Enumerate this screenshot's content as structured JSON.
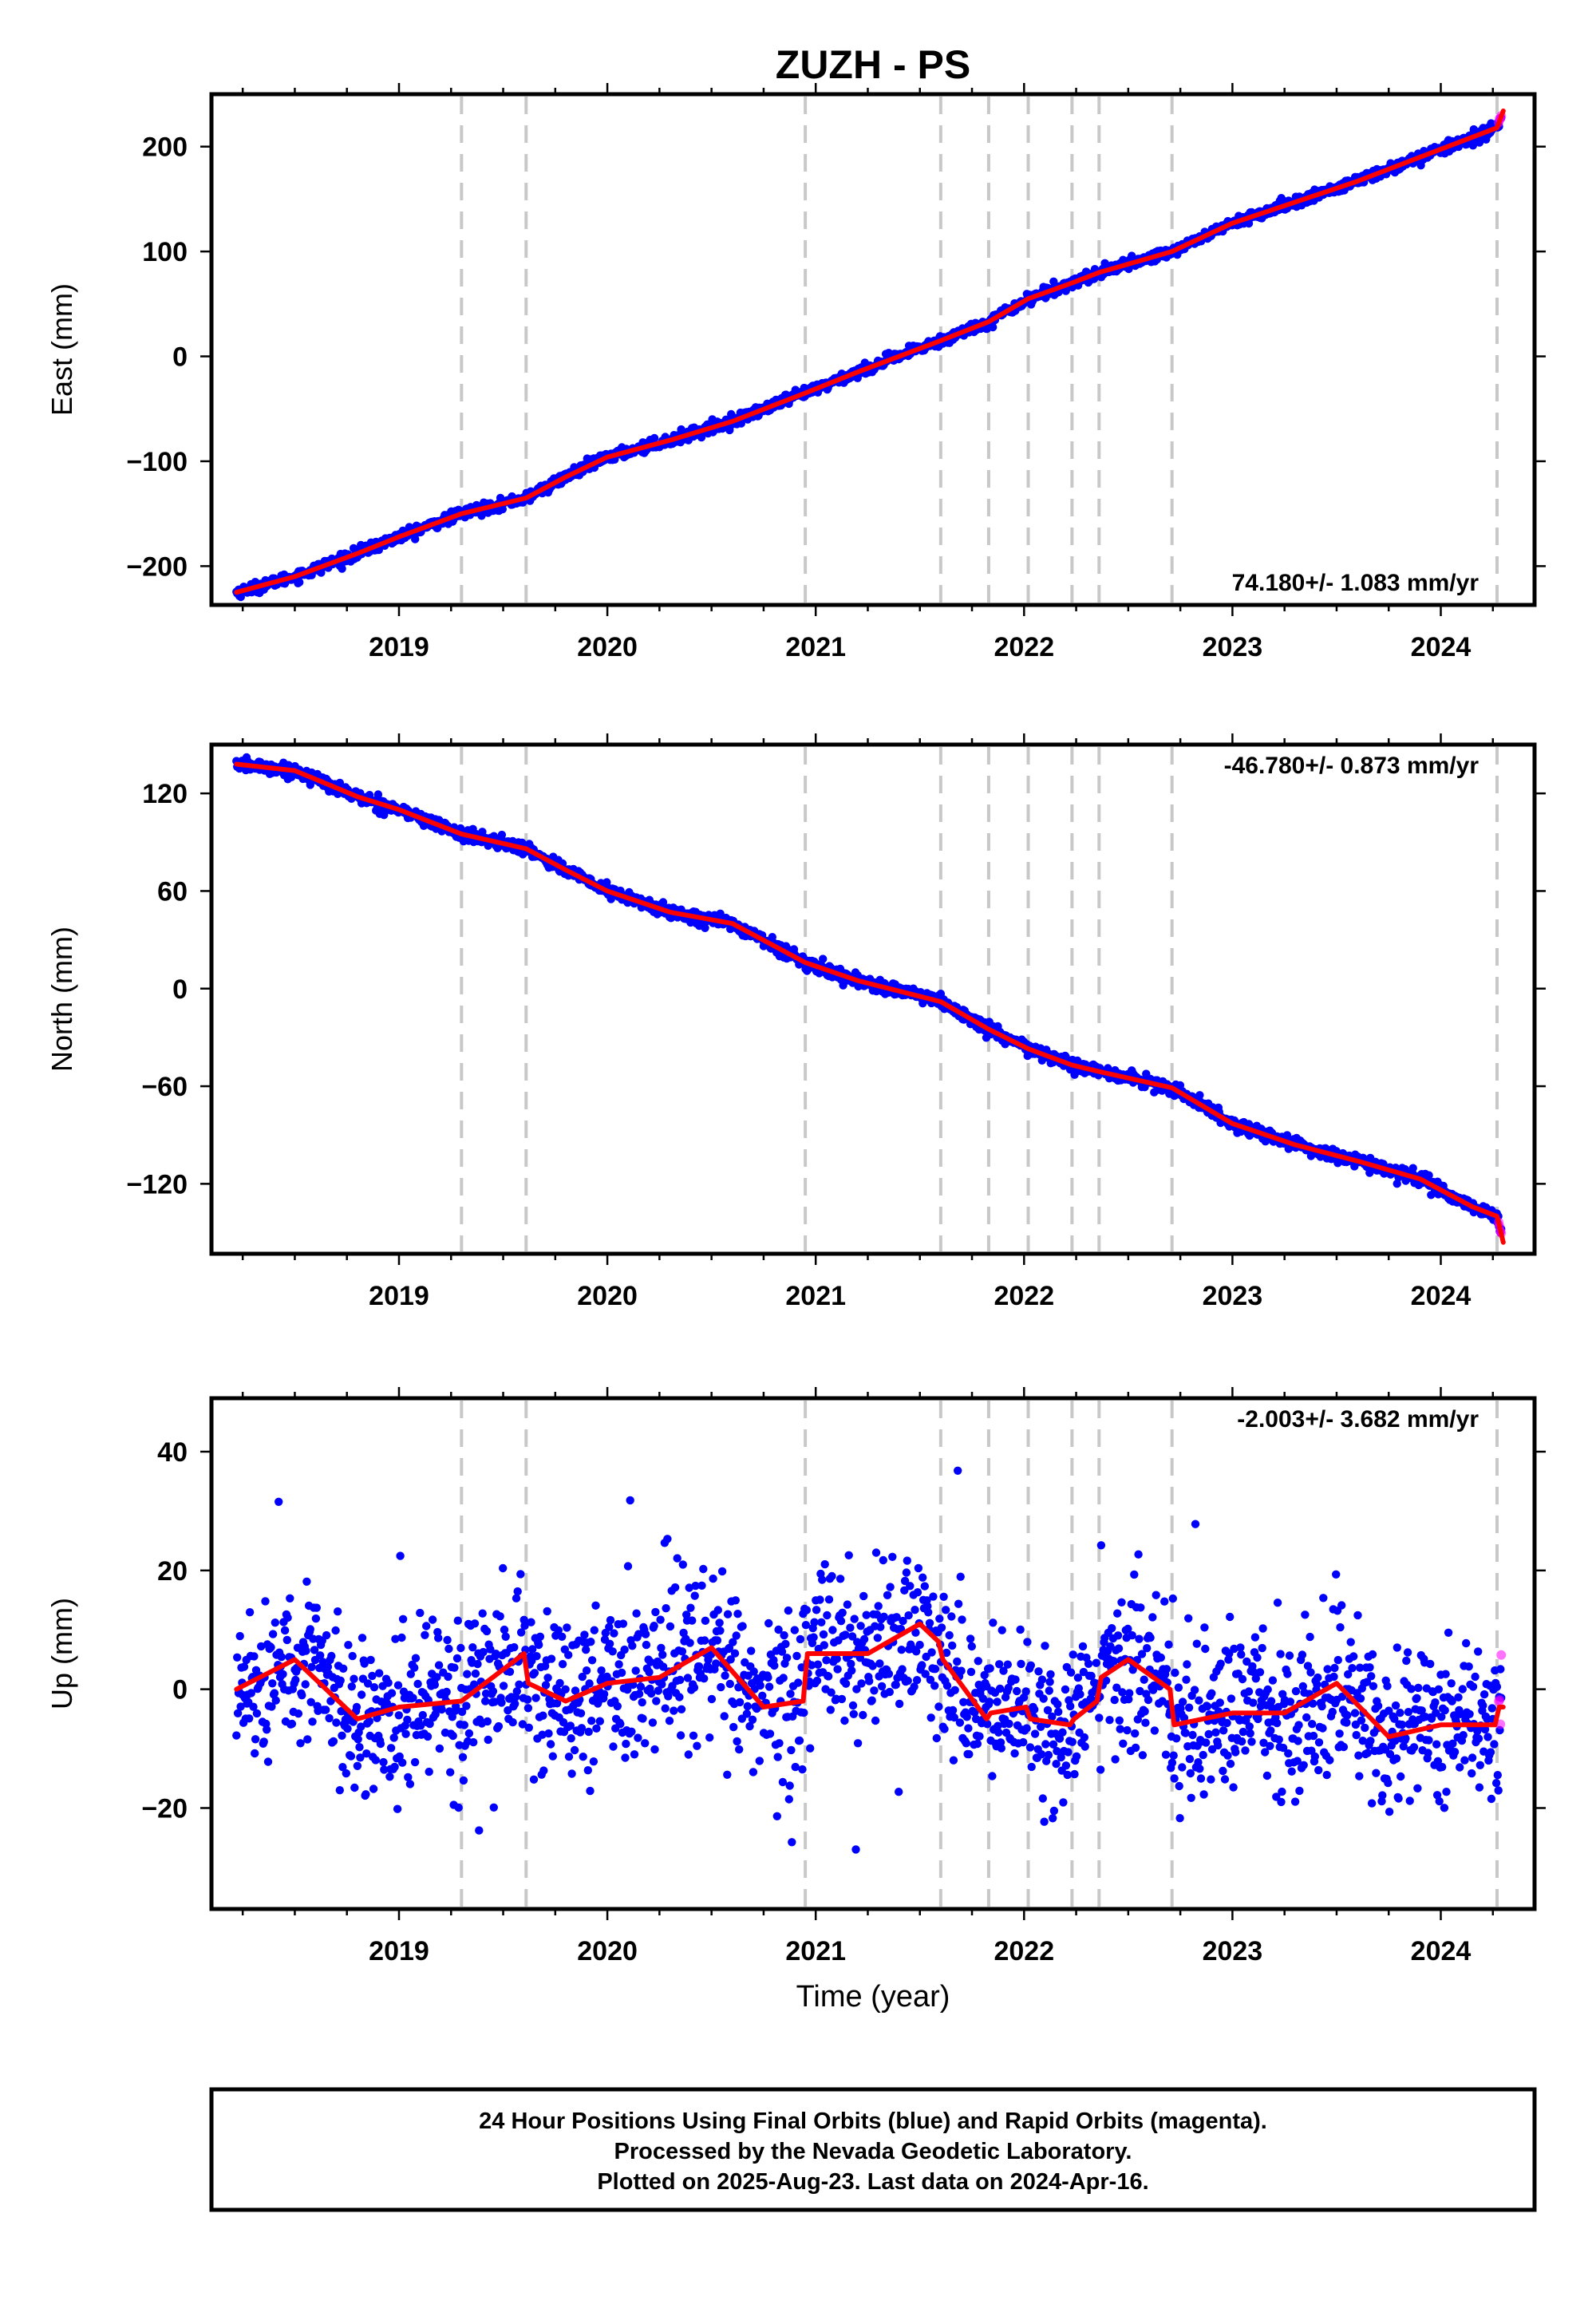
{
  "title": "ZUZH - PS",
  "colors": {
    "final_orbits": "#0000ff",
    "rapid_orbits": "#ff00ff",
    "model_fit": "#ff0000",
    "breaks": "#c8c8c8"
  },
  "footer": {
    "line1": "24 Hour Positions Using Final Orbits (blue) and Rapid Orbits (magenta).",
    "line2": "Processed by the Nevada Geodetic Laboratory.",
    "line3": "Plotted on 2025-Aug-23. Last data on 2024-Apr-16."
  },
  "chart_data": [
    {
      "type": "scatter",
      "ylabel": "East (mm)",
      "xlabel": "",
      "rate_label": "74.180+/- 1.083 mm/yr",
      "xlim": [
        2018.1,
        2024.45
      ],
      "ylim": [
        -237,
        250
      ],
      "xticks": [
        2019,
        2020,
        2021,
        2022,
        2023,
        2024
      ],
      "xtick_labels": [
        "2019",
        "2020",
        "2021",
        "2022",
        "2023",
        "2024"
      ],
      "yticks": [
        -200,
        -100,
        0,
        100,
        200
      ],
      "ytick_labels": [
        "−200",
        "−100",
        "0",
        "100",
        "200"
      ],
      "break_lines": [
        2019.3,
        2019.61,
        2020.95,
        2021.6,
        2021.83,
        2022.02,
        2022.23,
        2022.36,
        2022.71,
        2024.27
      ],
      "fit": {
        "x": [
          2018.22,
          2018.5,
          2018.8,
          2019.0,
          2019.3,
          2019.61,
          2019.8,
          2020.0,
          2020.3,
          2020.6,
          2020.95,
          2021.2,
          2021.6,
          2021.83,
          2022.02,
          2022.23,
          2022.36,
          2022.71,
          2023.0,
          2023.3,
          2023.6,
          2023.9,
          2024.27,
          2024.3
        ],
        "y": [
          -225,
          -210,
          -188,
          -172,
          -150,
          -135,
          -115,
          -96,
          -80,
          -62,
          -35,
          -15,
          15,
          33,
          55,
          70,
          80,
          100,
          127,
          147,
          167,
          190,
          218,
          234
        ]
      },
      "scatter": {
        "n": 1750,
        "x_start": 2018.22,
        "x_end": 2024.29,
        "noise_sd": 2.6,
        "rapid_tail_start": 2024.22
      }
    },
    {
      "type": "scatter",
      "ylabel": "North (mm)",
      "xlabel": "",
      "rate_label": "-46.780+/- 0.873 mm/yr",
      "xlim": [
        2018.1,
        2024.45
      ],
      "ylim": [
        -163,
        150
      ],
      "xticks": [
        2019,
        2020,
        2021,
        2022,
        2023,
        2024
      ],
      "xtick_labels": [
        "2019",
        "2020",
        "2021",
        "2022",
        "2023",
        "2024"
      ],
      "yticks": [
        -120,
        -60,
        0,
        60,
        120
      ],
      "ytick_labels": [
        "−120",
        "−60",
        "0",
        "60",
        "120"
      ],
      "break_lines": [
        2019.3,
        2019.61,
        2020.95,
        2021.6,
        2021.83,
        2022.02,
        2022.23,
        2022.36,
        2022.71,
        2024.27
      ],
      "fit": {
        "x": [
          2018.22,
          2018.5,
          2018.8,
          2019.0,
          2019.3,
          2019.61,
          2019.8,
          2020.0,
          2020.3,
          2020.6,
          2020.95,
          2021.2,
          2021.6,
          2021.83,
          2022.02,
          2022.23,
          2022.36,
          2022.71,
          2023.0,
          2023.3,
          2023.6,
          2023.9,
          2024.15,
          2024.27,
          2024.3
        ],
        "y": [
          138,
          134,
          118,
          110,
          95,
          86,
          73,
          60,
          47,
          40,
          16,
          5,
          -8,
          -25,
          -37,
          -47,
          -51,
          -61,
          -83,
          -96,
          -106,
          -117,
          -134,
          -140,
          -156
        ]
      },
      "scatter": {
        "n": 1750,
        "x_start": 2018.22,
        "x_end": 2024.29,
        "noise_sd": 1.9,
        "rapid_tail_start": 2024.22
      }
    },
    {
      "type": "scatter",
      "ylabel": "Up (mm)",
      "xlabel": "Time (year)",
      "rate_label": "-2.003+/- 3.682 mm/yr",
      "xlim": [
        2018.1,
        2024.45
      ],
      "ylim": [
        -37,
        49
      ],
      "xticks": [
        2019,
        2020,
        2021,
        2022,
        2023,
        2024
      ],
      "xtick_labels": [
        "2019",
        "2020",
        "2021",
        "2022",
        "2023",
        "2024"
      ],
      "yticks": [
        -20,
        0,
        20,
        40
      ],
      "ytick_labels": [
        "−20",
        "0",
        "20",
        "40"
      ],
      "break_lines": [
        2019.3,
        2019.61,
        2020.95,
        2021.6,
        2021.83,
        2022.02,
        2022.23,
        2022.36,
        2022.71,
        2024.27
      ],
      "fit": {
        "x": [
          2018.22,
          2018.5,
          2018.8,
          2019.0,
          2019.3,
          2019.6,
          2019.62,
          2019.8,
          2020.0,
          2020.25,
          2020.5,
          2020.75,
          2020.94,
          2020.96,
          2021.25,
          2021.5,
          2021.59,
          2021.61,
          2021.82,
          2021.84,
          2022.01,
          2022.03,
          2022.22,
          2022.24,
          2022.35,
          2022.37,
          2022.5,
          2022.7,
          2022.72,
          2023.0,
          2023.25,
          2023.5,
          2023.75,
          2024.0,
          2024.26,
          2024.28,
          2024.3
        ],
        "y": [
          0,
          5,
          -5,
          -3,
          -2,
          6,
          1,
          -2,
          1,
          2,
          7,
          -3,
          -2,
          6,
          6,
          11,
          8,
          5,
          -5,
          -4,
          -3,
          -5,
          -6,
          -5,
          -2,
          2,
          5,
          0,
          -6,
          -4,
          -4,
          1,
          -8,
          -6,
          -6,
          -3,
          -3
        ]
      },
      "scatter": {
        "n": 1800,
        "x_start": 2018.22,
        "x_end": 2024.29,
        "noise_sd": 6.8,
        "rapid_tail_start": 2024.22
      }
    }
  ]
}
